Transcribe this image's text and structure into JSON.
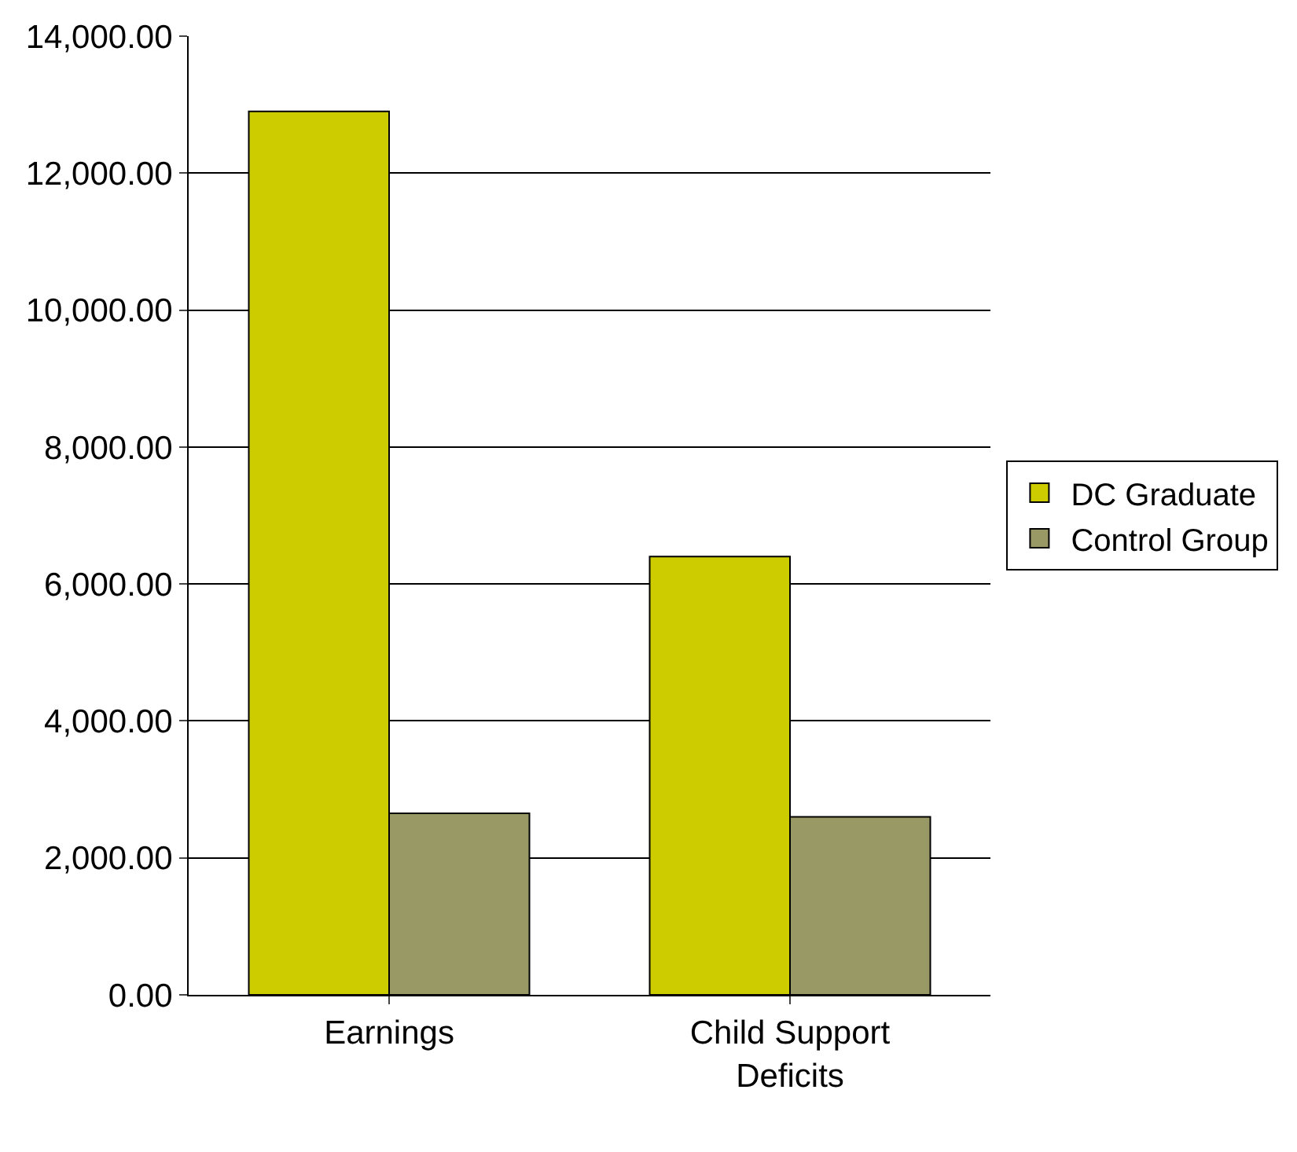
{
  "chart_data": {
    "type": "bar",
    "categories": [
      "Earnings",
      "Child Support Deficits"
    ],
    "series": [
      {
        "name": "DC Graduate",
        "color": "#cccc00",
        "values": [
          12900,
          6400
        ]
      },
      {
        "name": "Control Group",
        "color": "#999966",
        "values": [
          2650,
          2600
        ]
      }
    ],
    "ylim": [
      0,
      14000
    ],
    "yticks": [
      {
        "value": 0,
        "label": "0.00"
      },
      {
        "value": 2000,
        "label": "2,000.00"
      },
      {
        "value": 4000,
        "label": "4,000.00"
      },
      {
        "value": 6000,
        "label": "6,000.00"
      },
      {
        "value": 8000,
        "label": "8,000.00"
      },
      {
        "value": 10000,
        "label": "10,000.00"
      },
      {
        "value": 12000,
        "label": "12,000.00"
      },
      {
        "value": 14000,
        "label": "14,000.00"
      }
    ],
    "grid": "y",
    "legend": "right"
  }
}
